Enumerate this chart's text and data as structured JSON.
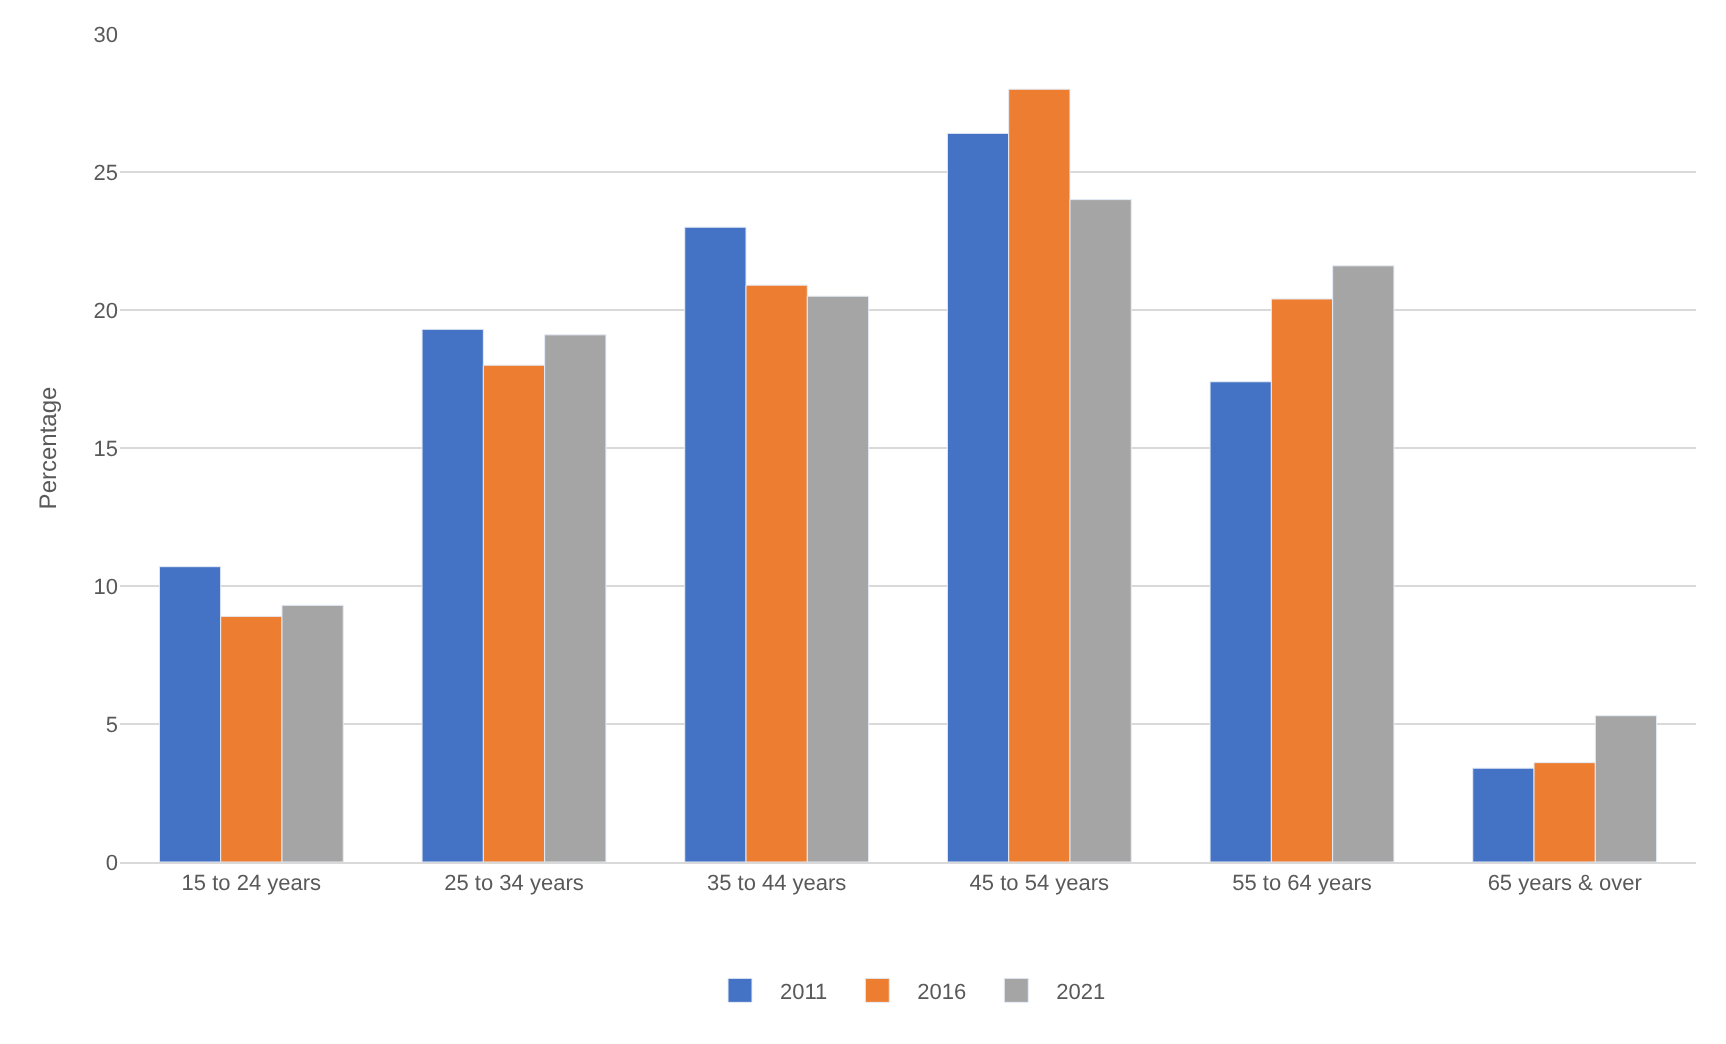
{
  "chart_data": {
    "type": "bar",
    "ylabel": "Percentage",
    "categories": [
      "15 to 24 years",
      "25 to 34 years",
      "35 to 44 years",
      "45 to 54 years",
      "55 to 64 years",
      "65 years & over"
    ],
    "series": [
      {
        "name": "2011",
        "color": "#4472c4",
        "values": [
          10.7,
          19.3,
          23.0,
          26.4,
          17.4,
          3.4
        ]
      },
      {
        "name": "2016",
        "color": "#ed7d31",
        "values": [
          8.9,
          18.0,
          20.9,
          28.0,
          20.4,
          3.6
        ]
      },
      {
        "name": "2021",
        "color": "#a5a5a5",
        "values": [
          9.3,
          19.1,
          20.5,
          24.0,
          21.6,
          5.3
        ]
      }
    ],
    "ylim": [
      0,
      30
    ],
    "yticks": [
      0,
      5,
      10,
      15,
      20,
      25,
      30
    ],
    "grid": "y",
    "legend": "bottom"
  }
}
